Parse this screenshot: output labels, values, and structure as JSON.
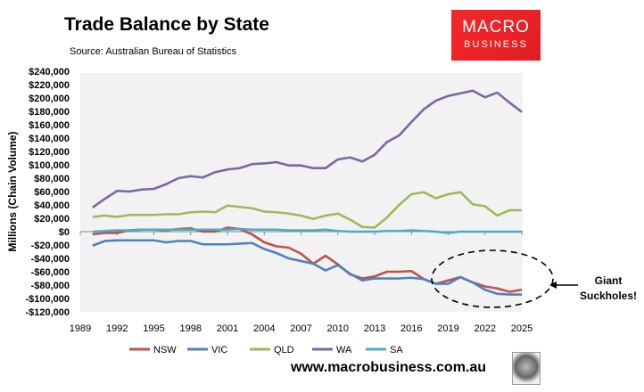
{
  "header": {
    "title": "Trade Balance by State",
    "source": "Source: Australian Bureau of Statistics"
  },
  "logo": {
    "line1": "MACRO",
    "line2": "BUSINESS",
    "color": "#e8222a"
  },
  "footer": {
    "url": "www.macrobusiness.com.au"
  },
  "annotation": {
    "line1": "Giant",
    "line2": "Suckholes!"
  },
  "chart_data": {
    "type": "line",
    "title": "Trade Balance by State",
    "ylabel": "Millions (Chain Volume)",
    "ylim": [
      -120000,
      240000
    ],
    "yticks": [
      240000,
      220000,
      200000,
      180000,
      160000,
      140000,
      120000,
      100000,
      80000,
      60000,
      40000,
      20000,
      0,
      -20000,
      -40000,
      -60000,
      -80000,
      -100000,
      -120000
    ],
    "ytick_labels": [
      "$240,000",
      "$220,000",
      "$200,000",
      "$180,000",
      "$160,000",
      "$140,000",
      "$120,000",
      "$100,000",
      "$80,000",
      "$60,000",
      "$40,000",
      "$20,000",
      "$0",
      "-$20,000",
      "-$40,000",
      "-$60,000",
      "-$80,000",
      "-$100,000",
      "-$120,000"
    ],
    "xlim": [
      1989,
      2025
    ],
    "xticks": [
      "1989",
      "1992",
      "1995",
      "1998",
      "2001",
      "2004",
      "2007",
      "2010",
      "2013",
      "2016",
      "2019",
      "2022",
      "2025"
    ],
    "x": [
      1990,
      1991,
      1992,
      1993,
      1994,
      1995,
      1996,
      1997,
      1998,
      1999,
      2000,
      2001,
      2002,
      2003,
      2004,
      2005,
      2006,
      2007,
      2008,
      2009,
      2010,
      2011,
      2012,
      2013,
      2014,
      2015,
      2016,
      2017,
      2018,
      2019,
      2020,
      2021,
      2022,
      2023,
      2024,
      2025
    ],
    "legend": "bottom",
    "grid": false,
    "series": [
      {
        "name": "NSW",
        "color": "#c0504d",
        "values": [
          -4000,
          -2000,
          -2000,
          2000,
          3000,
          3000,
          2000,
          4000,
          5000,
          0,
          0,
          6000,
          4000,
          -4000,
          -16000,
          -22000,
          -24000,
          -33000,
          -48000,
          -36000,
          -49000,
          -64000,
          -70000,
          -67000,
          -60000,
          -60000,
          -59000,
          -71000,
          -78000,
          -73000,
          -68000,
          -76000,
          -82000,
          -85000,
          -90000,
          -87000
        ]
      },
      {
        "name": "VIC",
        "color": "#4f81bd",
        "values": [
          -21000,
          -14000,
          -13000,
          -13000,
          -13000,
          -13000,
          -16000,
          -14000,
          -14000,
          -19000,
          -19000,
          -19000,
          -18000,
          -17000,
          -26000,
          -32000,
          -40000,
          -44000,
          -48000,
          -58000,
          -50000,
          -63000,
          -73000,
          -70000,
          -70000,
          -70000,
          -69000,
          -71000,
          -78000,
          -78000,
          -68000,
          -76000,
          -87000,
          -93000,
          -94000,
          -94000
        ]
      },
      {
        "name": "QLD",
        "color": "#9bbb59",
        "values": [
          22000,
          24000,
          22000,
          25000,
          25000,
          25000,
          26000,
          26000,
          29000,
          30000,
          29000,
          39000,
          37000,
          35000,
          30000,
          29000,
          27000,
          24000,
          19000,
          24000,
          27000,
          18000,
          7000,
          6000,
          21000,
          40000,
          56000,
          59000,
          50000,
          56000,
          59000,
          41000,
          38000,
          24000,
          32000,
          32000
        ]
      },
      {
        "name": "WA",
        "color": "#8064a2",
        "values": [
          36000,
          49000,
          61000,
          60000,
          63000,
          64000,
          71000,
          80000,
          83000,
          81000,
          89000,
          93000,
          95000,
          101000,
          102000,
          104000,
          99000,
          99000,
          95000,
          95000,
          108000,
          111000,
          105000,
          115000,
          134000,
          144000,
          164000,
          183000,
          196000,
          203000,
          207000,
          211000,
          201000,
          208000,
          193000,
          179000
        ]
      },
      {
        "name": "SA",
        "color": "#4bacc6",
        "values": [
          0,
          1000,
          2000,
          2000,
          3000,
          3000,
          3000,
          3000,
          3000,
          3000,
          3000,
          3000,
          4000,
          3000,
          3000,
          3000,
          2000,
          2000,
          2000,
          3000,
          1000,
          0,
          0,
          0,
          1000,
          1000,
          2000,
          1000,
          0,
          -2000,
          0,
          0,
          0,
          0,
          0,
          0
        ]
      }
    ]
  }
}
